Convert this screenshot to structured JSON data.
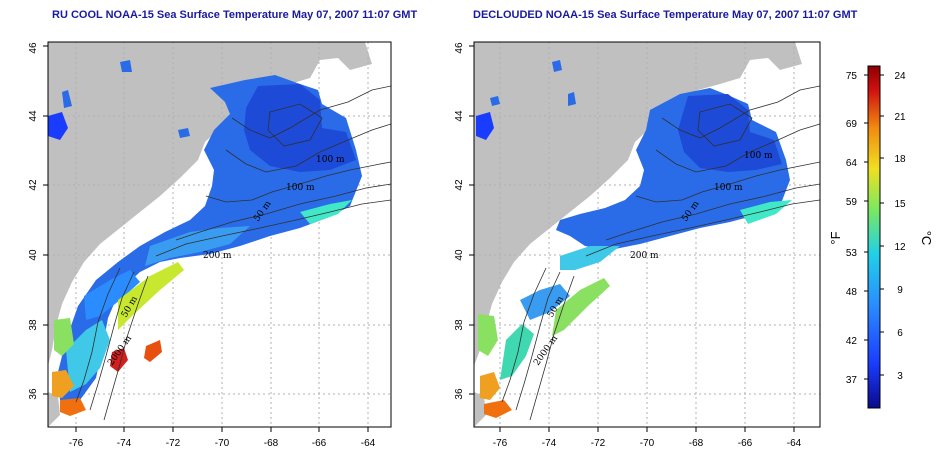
{
  "panels": [
    {
      "id": "left",
      "title": "RU COOL NOAA-15 Sea Surface Temperature May 07, 2007 11:07 GMT",
      "x_ticks": [
        "-76",
        "-74",
        "-72",
        "-70",
        "-68",
        "-66",
        "-64"
      ],
      "y_ticks": [
        "36",
        "38",
        "40",
        "42",
        "44",
        "46"
      ],
      "contour_labels": [
        "100 m",
        "100 m",
        "50 m",
        "200 m",
        "50 m",
        "2000 m"
      ]
    },
    {
      "id": "right",
      "title": "DECLOUDED NOAA-15 Sea Surface Temperature May 07, 2007 11:07 GMT",
      "x_ticks": [
        "-76",
        "-74",
        "-72",
        "-70",
        "-68",
        "-66",
        "-64"
      ],
      "y_ticks": [
        "36",
        "38",
        "40",
        "42",
        "44",
        "46"
      ],
      "contour_labels": [
        "100 m",
        "100 m",
        "50 m",
        "200 m",
        "50 m",
        "2000 m"
      ]
    }
  ],
  "colorbar": {
    "fahrenheit_label": "°F",
    "celsius_label": "°C",
    "fahrenheit_ticks": [
      "75",
      "69",
      "64",
      "59",
      "53",
      "48",
      "42",
      "37"
    ],
    "celsius_ticks": [
      "24",
      "21",
      "18",
      "15",
      "12",
      "9",
      "6",
      "3"
    ],
    "colors": [
      "#0a0a8c",
      "#1a3cff",
      "#2a8cff",
      "#20d0e8",
      "#7ae860",
      "#f0e020",
      "#f08a10",
      "#d01010",
      "#8c0000"
    ]
  },
  "colors": {
    "land": "#c0c0c0",
    "ocean": "#ffffff",
    "title": "#1a1aa0"
  }
}
